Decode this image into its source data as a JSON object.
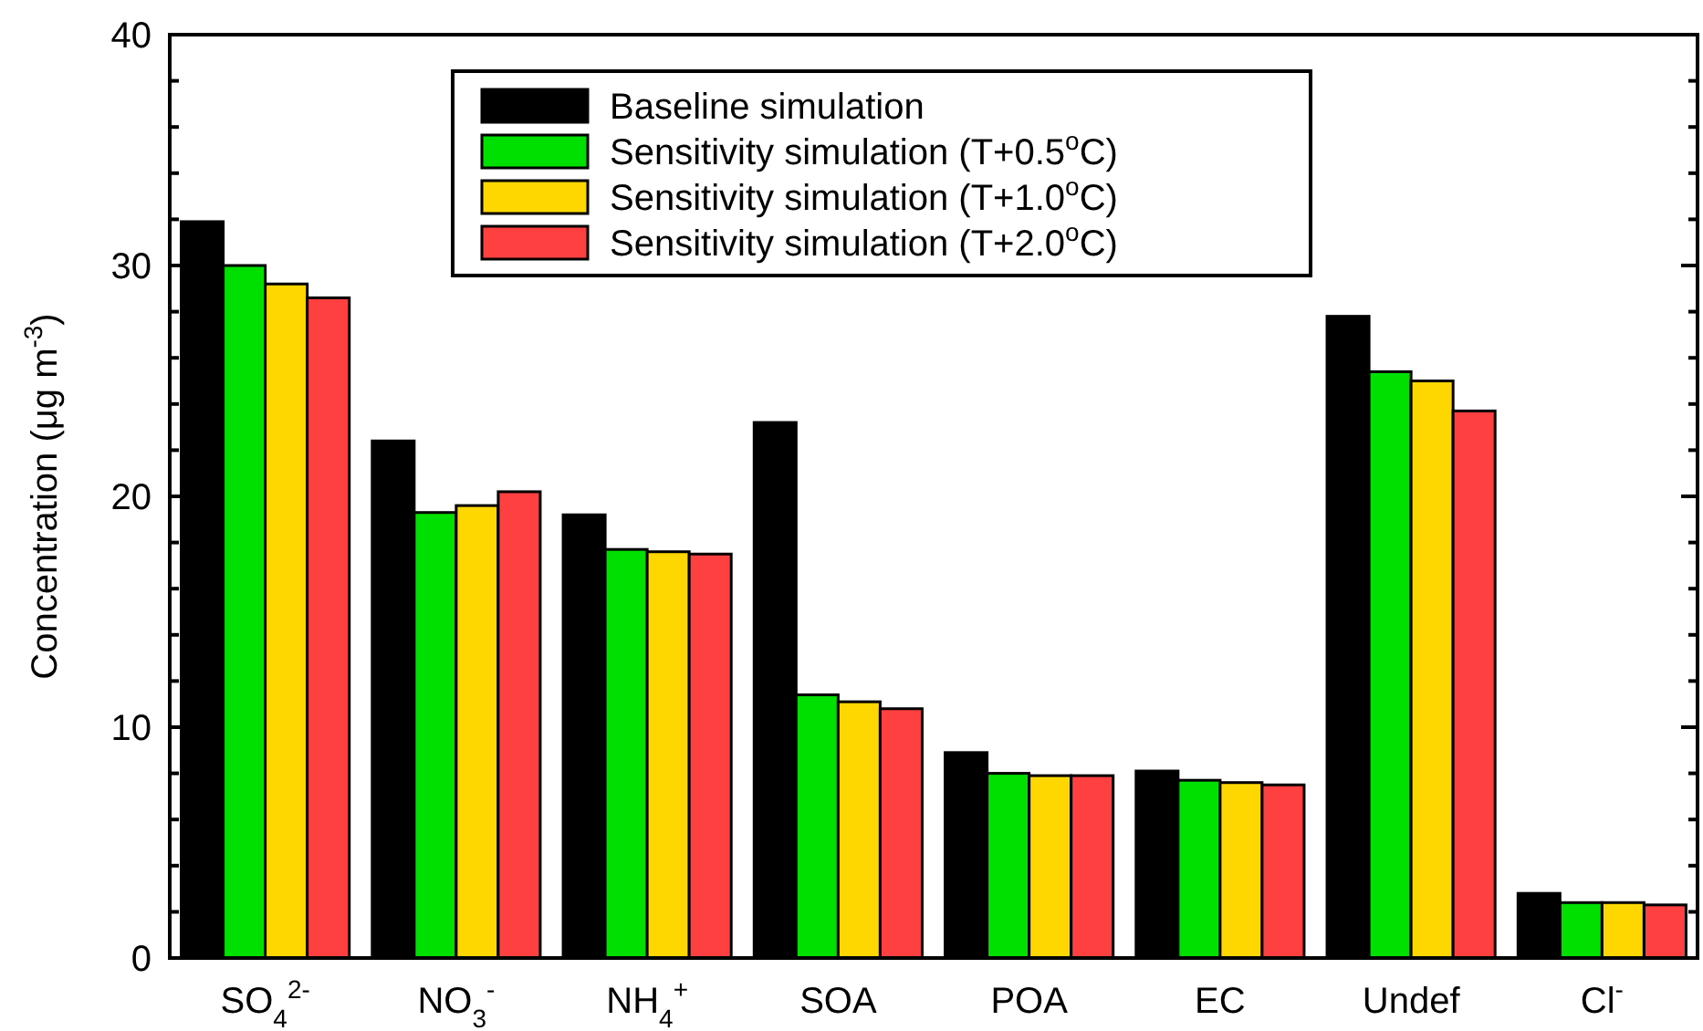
{
  "chart_data": {
    "type": "bar",
    "ylabel": "Concentration (μg m$^{-3}$)",
    "categories": [
      "SO$_{4}$$^{2-}$",
      "NO$_{3}$$^{-}$",
      "NH$_{4}$$^{+}$",
      "SOA",
      "POA",
      "EC",
      "Undef",
      "Cl$^{-}$"
    ],
    "series": [
      {
        "name": "Baseline simulation",
        "color": "#000000",
        "values": [
          31.9,
          22.4,
          19.2,
          23.2,
          8.9,
          8.1,
          27.8,
          2.8
        ]
      },
      {
        "name": "Sensitivity simulation (T+0.5$^{o}$C)",
        "color": "#00e000",
        "values": [
          30.0,
          19.3,
          17.7,
          11.4,
          8.0,
          7.7,
          25.4,
          2.4
        ]
      },
      {
        "name": "Sensitivity simulation (T+1.0$^{o}$C)",
        "color": "#ffd700",
        "values": [
          29.2,
          19.6,
          17.6,
          11.1,
          7.9,
          7.6,
          25.0,
          2.4
        ]
      },
      {
        "name": "Sensitivity simulation (T+2.0$^{o}$C)",
        "color": "#ff4040",
        "values": [
          28.6,
          20.2,
          17.5,
          10.8,
          7.9,
          7.5,
          23.7,
          2.3
        ]
      }
    ],
    "ylim": [
      0,
      40
    ],
    "yticks": [
      0,
      {
        "value": 2,
        "label": null
      },
      {
        "value": 4,
        "label": null
      },
      {
        "value": 6,
        "label": null
      },
      {
        "value": 8,
        "label": null
      },
      10,
      {
        "value": 12,
        "label": null
      },
      {
        "value": 14,
        "label": null
      },
      {
        "value": 16,
        "label": null
      },
      {
        "value": 18,
        "label": null
      },
      20,
      {
        "value": 22,
        "label": null
      },
      {
        "value": 24,
        "label": null
      },
      {
        "value": 26,
        "label": null
      },
      {
        "value": 28,
        "label": null
      },
      30,
      {
        "value": 32,
        "label": null
      },
      {
        "value": 34,
        "label": null
      },
      {
        "value": 36,
        "label": null
      },
      {
        "value": 38,
        "label": null
      },
      40
    ],
    "grid": false,
    "legend": "top"
  }
}
